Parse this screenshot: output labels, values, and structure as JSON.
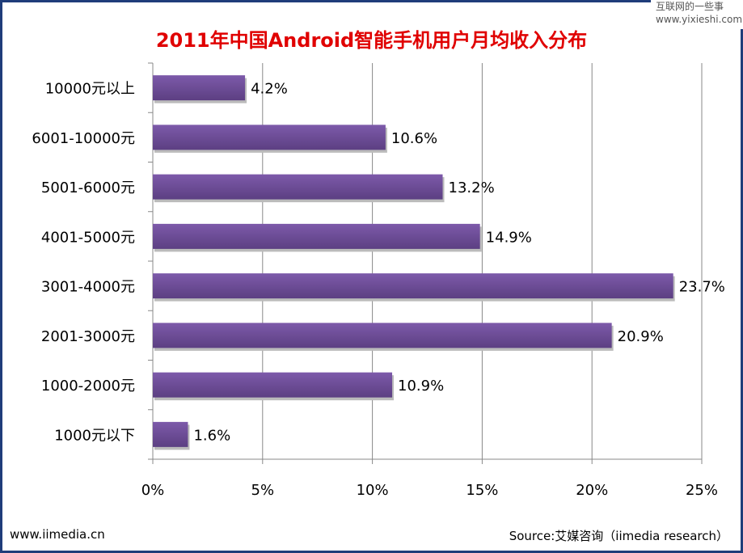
{
  "watermark": {
    "line1": "互联网的一些事",
    "line2": "www.yixieshi.com"
  },
  "footer": {
    "left": "www.iimedia.cn",
    "right": "Source:艾媒咨询（iimedia research）"
  },
  "colors": {
    "bar": "#6f4f9a",
    "title": "#e00000",
    "frame": "#1f3d7a"
  },
  "chart_data": {
    "type": "bar",
    "orientation": "horizontal",
    "title": "2011年中国Android智能手机用户月均收入分布",
    "categories": [
      "10000元以上",
      "6001-10000元",
      "5001-6000元",
      "4001-5000元",
      "3001-4000元",
      "2001-3000元",
      "1000-2000元",
      "1000元以下"
    ],
    "values": [
      4.2,
      10.6,
      13.2,
      14.9,
      23.7,
      20.9,
      10.9,
      1.6
    ],
    "data_labels": [
      "4.2%",
      "10.6%",
      "13.2%",
      "14.9%",
      "23.7%",
      "20.9%",
      "10.9%",
      "1.6%"
    ],
    "xlim": [
      0,
      25
    ],
    "ticks": [
      "0%",
      "5%",
      "10%",
      "15%",
      "20%",
      "25%"
    ],
    "grid": true,
    "legend": "none"
  }
}
